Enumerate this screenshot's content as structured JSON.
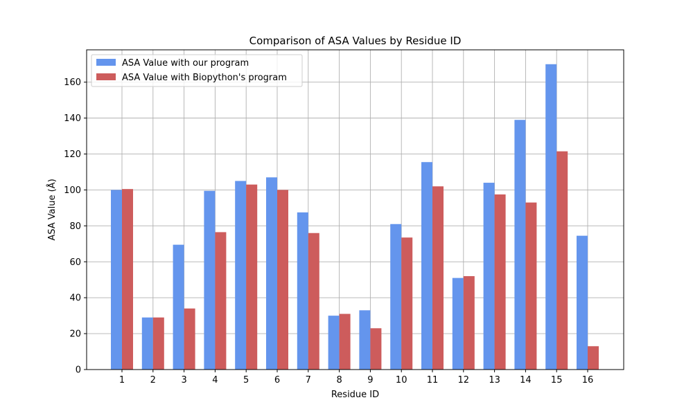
{
  "chart_data": {
    "type": "bar",
    "title": "Comparison of ASA Values by Residue ID",
    "xlabel": "Residue ID",
    "ylabel": "ASA Value (Å)",
    "categories": [
      "1",
      "2",
      "3",
      "4",
      "5",
      "6",
      "7",
      "8",
      "9",
      "10",
      "11",
      "12",
      "13",
      "14",
      "15",
      "16"
    ],
    "series": [
      {
        "name": "ASA Value with our program",
        "color": "#6495ed",
        "values": [
          100,
          29,
          69.5,
          99.5,
          105,
          107,
          87.5,
          30,
          33,
          81,
          115.5,
          51,
          104,
          139,
          170,
          74.5
        ]
      },
      {
        "name": "ASA Value with Biopython's program",
        "color": "#cd5c5c",
        "values": [
          100.5,
          29,
          34,
          76.5,
          103,
          100,
          76,
          31,
          23,
          73.5,
          102,
          52,
          97.5,
          93,
          121.5,
          13
        ]
      }
    ],
    "ylim": [
      0,
      178
    ],
    "yticks": [
      0,
      20,
      40,
      60,
      80,
      100,
      120,
      140,
      160
    ],
    "grid": true,
    "legend_position": "top-left"
  }
}
